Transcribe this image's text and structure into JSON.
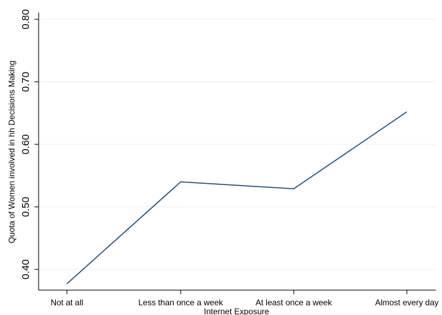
{
  "chart_data": {
    "type": "line",
    "title": "",
    "xlabel": "Internet Exposure",
    "ylabel": "Quota of Women involved in hh Decisions Making",
    "categories": [
      "Not at all",
      "Less than once a week",
      "At least once a week",
      "Almost every day"
    ],
    "series": [
      {
        "values": [
          0.377,
          0.54,
          0.529,
          0.652
        ],
        "color": "#1f4e79"
      }
    ],
    "ylim": [
      0.4,
      0.8
    ],
    "yticks": [
      0.4,
      0.5,
      0.6,
      0.7,
      0.8
    ],
    "ytick_labels": [
      "0.40",
      "0.50",
      "0.60",
      "0.70",
      "0.80"
    ],
    "grid": true,
    "grid_color": "#eaf0f2",
    "legend": "none"
  }
}
